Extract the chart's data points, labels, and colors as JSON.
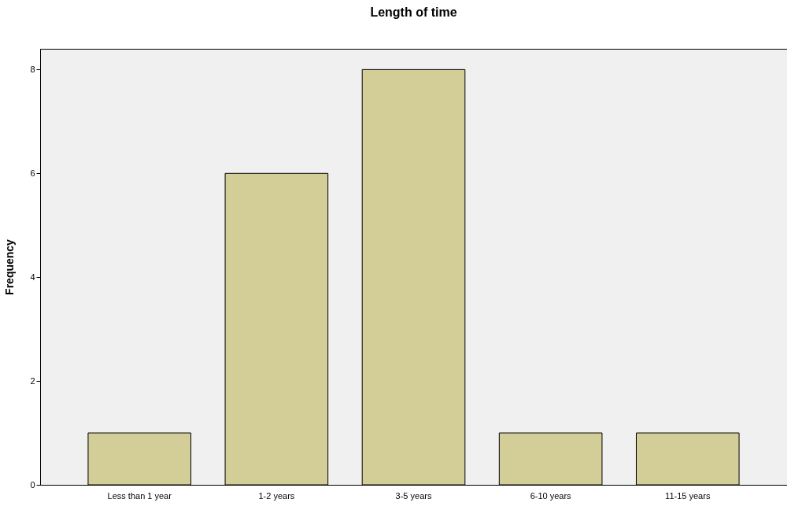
{
  "chart_data": {
    "type": "bar",
    "title": "Length of time",
    "ylabel": "Frequency",
    "categories": [
      "Less than 1 year",
      "1-2 years",
      "3-5  years",
      "6-10 years",
      "11-15 years"
    ],
    "values": [
      1,
      6,
      8,
      1,
      1
    ],
    "color": "#d3cd98",
    "ylim": [
      0,
      8.4
    ],
    "yticks": [
      0,
      2,
      4,
      6,
      8
    ],
    "grid": false
  }
}
